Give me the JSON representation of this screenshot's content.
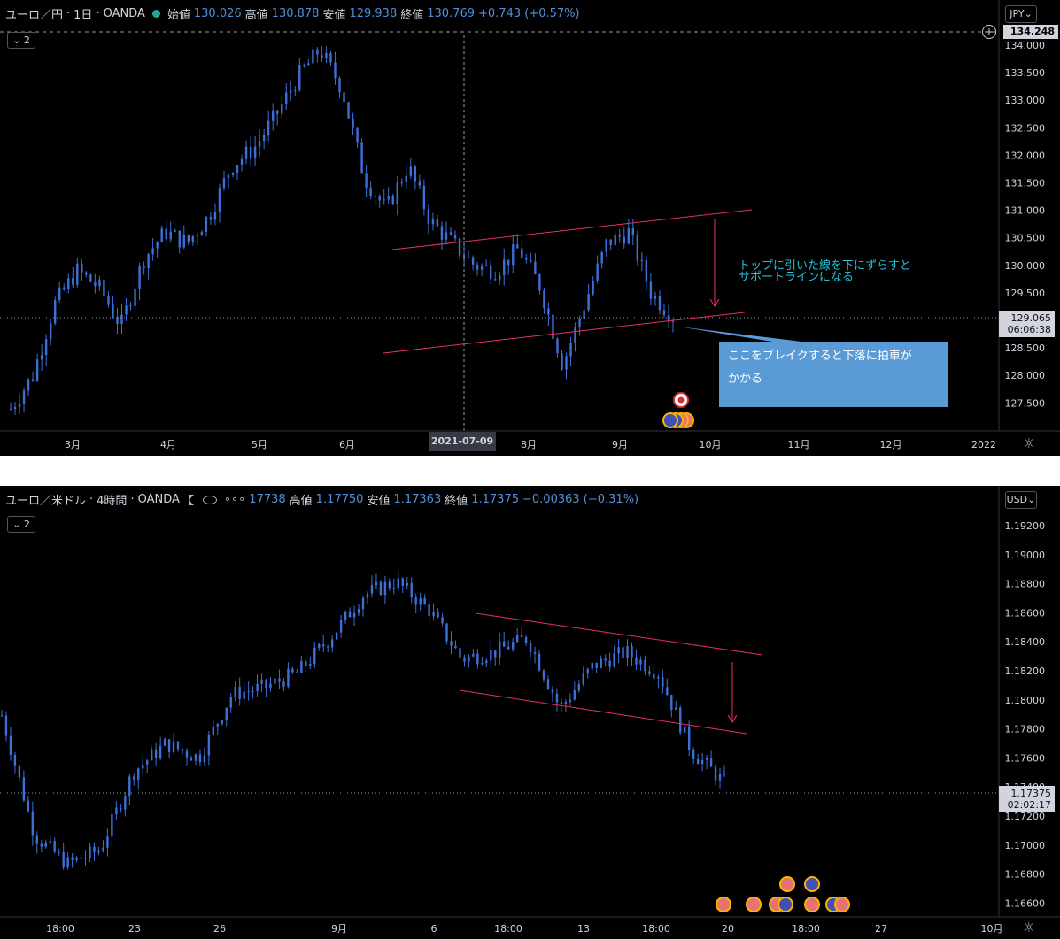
{
  "panels": [
    {
      "symbol": "ユーロ／円",
      "interval": "1日",
      "broker": "OANDA",
      "open_label": "始値",
      "open": "130.026",
      "high_label": "高値",
      "high": "130.878",
      "low_label": "安値",
      "low": "129.938",
      "close_label": "終値",
      "close": "130.769",
      "change": "+0.743 (+0.57%)",
      "indicator_count": "2",
      "currency": "JPY",
      "high_price_label": "134.248",
      "current_price": "129.065",
      "countdown": "06:06:38",
      "crosshair_date": "2021-07-09",
      "note_text": [
        "トップに引いた線を下にずらすと",
        "サポートラインになる"
      ],
      "callout_text": [
        "ここをブレイクすると下落に拍車が",
        "かかる"
      ]
    },
    {
      "symbol": "ユーロ／米ドル",
      "interval": "4時間",
      "broker": "OANDA",
      "open_value": "17738",
      "high_label": "高値",
      "high": "1.17750",
      "low_label": "安値",
      "low": "1.17363",
      "close_label": "終値",
      "close": "1.17375",
      "change": "−0.00363 (−0.31%)",
      "indicator_count": "2",
      "currency": "USD",
      "current_price": "1.17375",
      "countdown": "02:02:17"
    }
  ],
  "chart_data": [
    {
      "type": "candlestick",
      "title": "ユーロ／円 1日 OANDA",
      "y_ticks": [
        "134.000",
        "133.500",
        "133.000",
        "132.500",
        "132.000",
        "131.500",
        "131.000",
        "130.500",
        "130.000",
        "129.500",
        "129.000",
        "128.500",
        "128.000",
        "127.500"
      ],
      "x_ticks": [
        "3月",
        "4月",
        "5月",
        "6月",
        "2021-07-09",
        "8月",
        "9月",
        "10月",
        "11月",
        "12月",
        "2022"
      ],
      "ylim": [
        127.0,
        134.3
      ],
      "series": [
        {
          "name": "close",
          "x": [
            "02-22",
            "03-01",
            "03-08",
            "03-15",
            "03-22",
            "03-29",
            "04-05",
            "04-12",
            "04-19",
            "04-26",
            "05-03",
            "05-10",
            "05-17",
            "05-24",
            "05-31",
            "06-07",
            "06-14",
            "06-21",
            "06-28",
            "07-05",
            "07-12",
            "07-19",
            "07-26",
            "08-02",
            "08-09",
            "08-16",
            "08-23",
            "08-30",
            "09-06",
            "09-13",
            "09-20"
          ],
          "values": [
            127.4,
            128.0,
            129.3,
            129.9,
            129.6,
            128.9,
            130.1,
            130.6,
            130.4,
            130.9,
            131.8,
            132.1,
            132.7,
            133.4,
            133.9,
            133.2,
            131.6,
            131.0,
            131.8,
            130.8,
            130.4,
            130.0,
            129.9,
            130.3,
            129.6,
            128.2,
            129.3,
            130.4,
            130.6,
            129.5,
            129.07
          ]
        }
      ],
      "trendlines": [
        {
          "name": "resistance",
          "from": [
            "06-28",
            130.4
          ],
          "to": [
            "10-15",
            131.0
          ]
        },
        {
          "name": "support",
          "from": [
            "06-28",
            128.4
          ],
          "to": [
            "10-15",
            129.1
          ]
        }
      ]
    },
    {
      "type": "candlestick",
      "title": "ユーロ／米ドル 4時間 OANDA",
      "y_ticks": [
        "1.19200",
        "1.19000",
        "1.18800",
        "1.18600",
        "1.18400",
        "1.18200",
        "1.18000",
        "1.17800",
        "1.17600",
        "1.17400",
        "1.17200",
        "1.17000",
        "1.16800",
        "1.16600"
      ],
      "x_ticks": [
        "18:00",
        "23",
        "26",
        "9月",
        "6",
        "18:00",
        "13",
        "18:00",
        "20",
        "18:00",
        "27",
        "10月"
      ],
      "ylim": [
        1.1655,
        1.1935
      ],
      "series": [
        {
          "name": "close",
          "x": [
            "08-19",
            "08-20",
            "08-23",
            "08-24",
            "08-25",
            "08-26",
            "08-27",
            "08-30",
            "08-31",
            "09-01",
            "09-02",
            "09-03",
            "09-06",
            "09-07",
            "09-08",
            "09-09",
            "09-10",
            "09-13",
            "09-14",
            "09-15",
            "09-16",
            "09-17",
            "09-20"
          ],
          "values": [
            1.1785,
            1.17,
            1.168,
            1.169,
            1.1745,
            1.1765,
            1.1755,
            1.18,
            1.1805,
            1.1815,
            1.184,
            1.187,
            1.188,
            1.186,
            1.1825,
            1.183,
            1.184,
            1.179,
            1.182,
            1.183,
            1.1815,
            1.176,
            1.17375
          ]
        }
      ],
      "trendlines": [
        {
          "name": "resistance",
          "from": [
            "09-07",
            1.186
          ],
          "to": [
            "09-21",
            1.1835
          ]
        },
        {
          "name": "support",
          "from": [
            "09-06",
            1.1815
          ],
          "to": [
            "09-21",
            1.178
          ]
        }
      ]
    }
  ]
}
